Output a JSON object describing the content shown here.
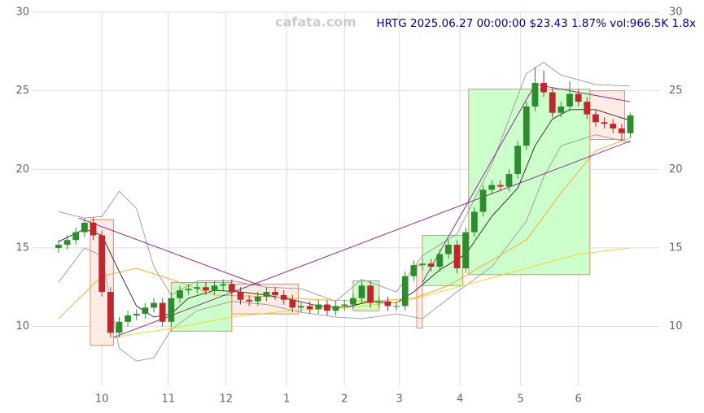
{
  "chart_data": {
    "type": "candlestick",
    "title": "HRTG 2025.06.27 00:00:00 $23.43 1.87% vol:966.5K 1.8x",
    "watermark": "cafata.com",
    "x": [
      0,
      3,
      6,
      9,
      12,
      15,
      18,
      21,
      24,
      27,
      30,
      33,
      36,
      39,
      42,
      45,
      48,
      51,
      54,
      57,
      60,
      63,
      66,
      69,
      72,
      75,
      78,
      81,
      84,
      87,
      90,
      93,
      96,
      99,
      102,
      105,
      108,
      111,
      114,
      117,
      120,
      123,
      126,
      129,
      132,
      135,
      138,
      141,
      144,
      147,
      150,
      153,
      156,
      159,
      162,
      165,
      168,
      171,
      174,
      177,
      180,
      183,
      186,
      189,
      192,
      195,
      198
    ],
    "open": [
      15.0,
      15.2,
      15.5,
      16.0,
      16.6,
      15.8,
      12.2,
      9.6,
      10.3,
      10.7,
      10.8,
      11.2,
      11.5,
      10.3,
      11.8,
      12.3,
      12.4,
      12.5,
      12.3,
      12.6,
      12.7,
      12.2,
      11.7,
      11.6,
      11.9,
      12.2,
      12.0,
      11.7,
      11.2,
      11.3,
      11.1,
      11.4,
      11.0,
      11.3,
      11.4,
      11.8,
      12.6,
      11.5,
      11.6,
      11.3,
      11.3,
      13.2,
      13.9,
      14.0,
      13.8,
      14.6,
      15.2,
      13.7,
      16.0,
      17.3,
      18.7,
      19.0,
      18.9,
      19.7,
      21.5,
      24.0,
      25.5,
      24.9,
      23.6,
      24.0,
      24.8,
      24.3,
      23.5,
      23.0,
      22.9,
      22.6,
      22.3
    ],
    "high": [
      15.5,
      15.8,
      16.3,
      16.9,
      16.9,
      16.1,
      12.5,
      10.6,
      11.0,
      11.1,
      11.5,
      11.8,
      11.8,
      12.1,
      12.6,
      12.7,
      12.8,
      12.8,
      12.9,
      13.0,
      13.0,
      12.5,
      12.0,
      12.2,
      12.5,
      12.5,
      12.3,
      12.0,
      11.6,
      11.6,
      11.7,
      11.7,
      11.6,
      11.7,
      12.1,
      12.9,
      12.9,
      11.9,
      11.9,
      11.6,
      13.5,
      14.2,
      14.3,
      14.3,
      14.9,
      15.5,
      15.5,
      16.3,
      17.6,
      19.0,
      19.3,
      19.3,
      20.0,
      21.8,
      24.3,
      26.5,
      26.3,
      25.2,
      24.3,
      25.6,
      25.1,
      24.6,
      23.8,
      23.3,
      23.2,
      22.9,
      23.6
    ],
    "low": [
      14.7,
      14.9,
      15.2,
      15.7,
      15.5,
      11.9,
      9.3,
      9.3,
      10.0,
      10.4,
      10.5,
      10.9,
      10.0,
      10.0,
      11.5,
      12.0,
      12.1,
      12.0,
      12.0,
      12.3,
      11.9,
      11.4,
      11.3,
      11.3,
      11.6,
      11.7,
      11.4,
      10.9,
      10.9,
      10.8,
      10.8,
      10.7,
      10.7,
      11.0,
      11.1,
      11.5,
      11.2,
      11.2,
      11.0,
      11.0,
      11.0,
      12.9,
      13.6,
      13.5,
      13.5,
      14.3,
      13.4,
      13.4,
      15.7,
      17.0,
      18.4,
      18.6,
      18.6,
      19.4,
      21.2,
      23.7,
      24.6,
      23.3,
      23.3,
      23.7,
      24.0,
      23.2,
      22.7,
      22.6,
      22.3,
      21.8,
      22.0
    ],
    "close": [
      15.2,
      15.5,
      16.0,
      16.6,
      15.8,
      12.2,
      9.6,
      10.3,
      10.7,
      10.8,
      11.2,
      11.5,
      10.3,
      11.8,
      12.3,
      12.4,
      12.5,
      12.3,
      12.6,
      12.7,
      12.2,
      11.7,
      11.6,
      11.9,
      12.2,
      12.0,
      11.7,
      11.2,
      11.3,
      11.1,
      11.4,
      11.0,
      11.3,
      11.4,
      11.8,
      12.6,
      11.5,
      11.6,
      11.3,
      11.3,
      13.2,
      13.9,
      14.0,
      13.8,
      14.6,
      15.2,
      13.7,
      16.0,
      17.3,
      18.7,
      19.0,
      18.9,
      19.7,
      21.5,
      24.0,
      25.5,
      24.9,
      23.6,
      24.0,
      24.8,
      24.3,
      23.5,
      23.0,
      22.9,
      22.6,
      22.3,
      23.43
    ],
    "up_color": "#2e8b2e",
    "down_color": "#c0272d",
    "lines": [
      {
        "color": "#222222",
        "x": [
          0,
          9,
          15,
          21,
          27,
          33,
          39,
          45,
          54,
          63,
          72,
          81,
          90,
          99,
          108,
          117,
          123,
          132,
          141,
          150,
          159,
          165,
          171,
          177,
          186,
          198
        ],
        "values": [
          15.4,
          16.2,
          15.8,
          13.5,
          11.3,
          10.6,
          10.8,
          11.8,
          12.3,
          12.2,
          12.0,
          11.7,
          11.3,
          11.2,
          11.6,
          11.5,
          12.2,
          13.6,
          14.6,
          17.0,
          18.8,
          21.5,
          23.2,
          23.8,
          23.8,
          23.1
        ]
      },
      {
        "color": "#999999",
        "x": [
          0,
          9,
          15,
          21,
          27,
          33,
          39,
          48,
          60,
          72,
          84,
          96,
          105,
          117,
          126,
          138,
          150,
          162,
          168,
          174,
          186,
          198
        ],
        "values": [
          17.3,
          16.9,
          17.0,
          18.6,
          17.5,
          13.8,
          12.0,
          12.9,
          12.9,
          12.5,
          12.4,
          11.6,
          13.0,
          12.2,
          14.5,
          15.9,
          20.3,
          26.1,
          26.8,
          26.0,
          25.4,
          25.3
        ]
      },
      {
        "color": "#999999",
        "x": [
          0,
          9,
          15,
          21,
          27,
          33,
          39,
          48,
          60,
          72,
          84,
          96,
          105,
          117,
          126,
          138,
          150,
          162,
          168,
          174,
          186,
          198
        ],
        "values": [
          12.8,
          15.0,
          14.5,
          8.6,
          7.8,
          8.0,
          9.8,
          11.0,
          11.6,
          11.4,
          10.9,
          10.6,
          10.5,
          10.8,
          10.5,
          12.2,
          13.8,
          16.7,
          19.5,
          21.5,
          22.2,
          21.7
        ]
      },
      {
        "color": "#f5a623",
        "x": [
          0,
          15,
          27,
          39,
          54,
          72,
          90,
          108,
          123,
          135,
          150,
          162,
          174,
          186,
          198
        ],
        "values": [
          10.5,
          13.2,
          13.7,
          13.0,
          12.0,
          11.9,
          11.7,
          11.6,
          11.8,
          12.6,
          14.2,
          15.5,
          18.5,
          21.2,
          22.0
        ]
      },
      {
        "color": "#f5d020",
        "x": [
          19,
          40,
          60,
          80,
          100,
          120,
          140,
          160,
          180,
          198
        ],
        "values": [
          9.3,
          9.9,
          10.6,
          11.0,
          11.2,
          11.6,
          12.6,
          13.6,
          14.6,
          15.0
        ]
      }
    ],
    "trendlines": [
      {
        "color": "#800080",
        "x": [
          7,
          70
        ],
        "values": [
          16.9,
          12.6
        ]
      },
      {
        "color": "#800080",
        "x": [
          19,
          198
        ],
        "values": [
          9.3,
          21.8
        ]
      },
      {
        "color": "#800080",
        "x": [
          126,
          165
        ],
        "values": [
          12.8,
          25.4
        ]
      },
      {
        "color": "#800080",
        "x": [
          165,
          198
        ],
        "values": [
          25.4,
          24.3
        ]
      }
    ],
    "boxes": [
      {
        "x": [
          11,
          19
        ],
        "values": [
          8.8,
          16.8
        ],
        "color": "#fdece6"
      },
      {
        "x": [
          39,
          60
        ],
        "values": [
          9.7,
          12.8
        ],
        "color": "#ccffcc"
      },
      {
        "x": [
          60,
          83
        ],
        "values": [
          10.8,
          12.7
        ],
        "color": "#fdece6"
      },
      {
        "x": [
          102,
          111
        ],
        "values": [
          11.0,
          12.9
        ],
        "color": "#ccffcc"
      },
      {
        "x": [
          124,
          126
        ],
        "values": [
          9.9,
          13.9
        ],
        "color": "#fdece6"
      },
      {
        "x": [
          126,
          140
        ],
        "values": [
          12.6,
          15.8
        ],
        "color": "#ccffcc"
      },
      {
        "x": [
          142,
          184
        ],
        "values": [
          13.3,
          25.1
        ],
        "color": "#ccffcc"
      },
      {
        "x": [
          184,
          196
        ],
        "values": [
          21.9,
          25.0
        ],
        "color": "#fdece6"
      }
    ],
    "xlim": [
      -9,
      208
    ],
    "ylim": [
      6.2,
      30
    ],
    "yticks": [
      10,
      15,
      20,
      25,
      30
    ],
    "xticks": [
      {
        "value": 15,
        "label": "10"
      },
      {
        "value": 38,
        "label": "11"
      },
      {
        "value": 58,
        "label": "12"
      },
      {
        "value": 79,
        "label": "1"
      },
      {
        "value": 99,
        "label": "2"
      },
      {
        "value": 118,
        "label": "3"
      },
      {
        "value": 139,
        "label": "4"
      },
      {
        "value": 160,
        "label": "5"
      },
      {
        "value": 180,
        "label": "6"
      }
    ],
    "grid": true
  }
}
